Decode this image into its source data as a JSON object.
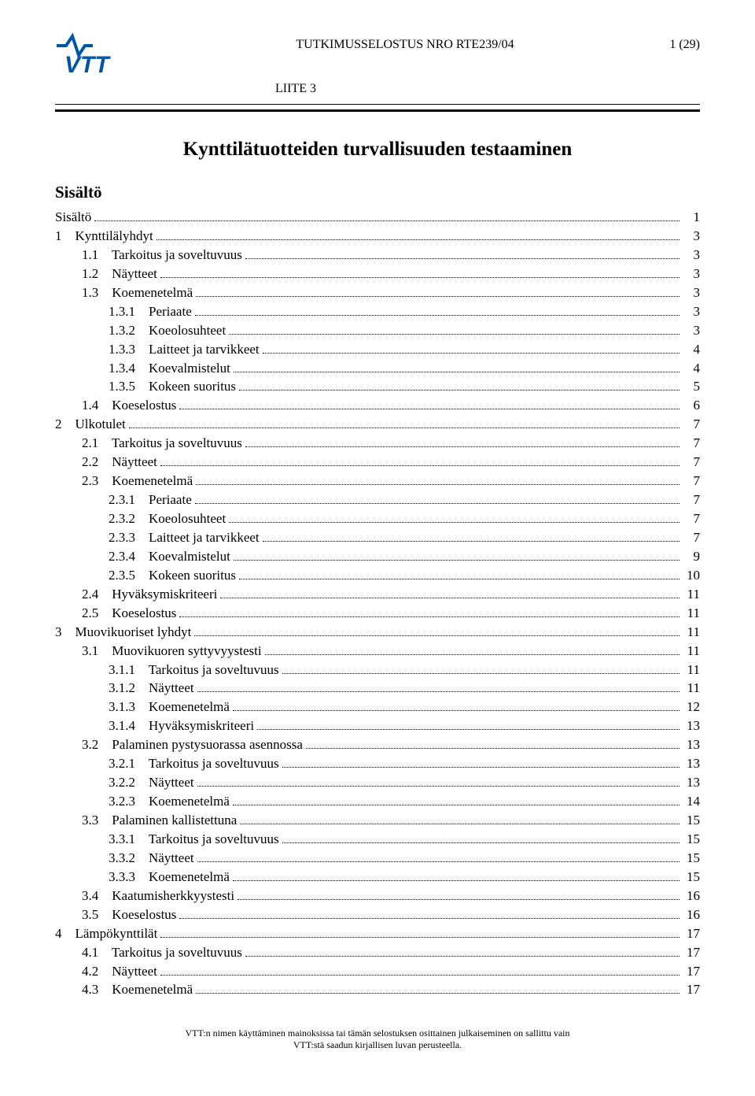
{
  "header": {
    "report_line": "TUTKIMUSSELOSTUS NRO RTE239/04",
    "page_indicator": "1 (29)",
    "appendix": "LIITE 3",
    "logo_text": "VTT"
  },
  "title": "Kynttilätuotteiden turvallisuuden testaaminen",
  "section_heading": "Sisältö",
  "toc": [
    {
      "indent": 0,
      "label": "Sisältö",
      "page": "1"
    },
    {
      "indent": 0,
      "label": "1    Kynttilälyhdyt",
      "page": "3"
    },
    {
      "indent": 1,
      "label": "1.1    Tarkoitus ja soveltuvuus",
      "page": "3"
    },
    {
      "indent": 1,
      "label": "1.2    Näytteet",
      "page": "3"
    },
    {
      "indent": 1,
      "label": "1.3    Koemenetelmä",
      "page": "3"
    },
    {
      "indent": 2,
      "label": "1.3.1    Periaate",
      "page": "3"
    },
    {
      "indent": 2,
      "label": "1.3.2    Koeolosuhteet",
      "page": "3"
    },
    {
      "indent": 2,
      "label": "1.3.3    Laitteet ja tarvikkeet",
      "page": "4"
    },
    {
      "indent": 2,
      "label": "1.3.4    Koevalmistelut",
      "page": "4"
    },
    {
      "indent": 2,
      "label": "1.3.5    Kokeen suoritus",
      "page": "5"
    },
    {
      "indent": 1,
      "label": "1.4    Koeselostus",
      "page": "6"
    },
    {
      "indent": 0,
      "label": "2    Ulkotulet",
      "page": "7"
    },
    {
      "indent": 1,
      "label": "2.1    Tarkoitus ja soveltuvuus",
      "page": "7"
    },
    {
      "indent": 1,
      "label": "2.2    Näytteet",
      "page": "7"
    },
    {
      "indent": 1,
      "label": "2.3    Koemenetelmä",
      "page": "7"
    },
    {
      "indent": 2,
      "label": "2.3.1    Periaate",
      "page": "7"
    },
    {
      "indent": 2,
      "label": "2.3.2    Koeolosuhteet",
      "page": "7"
    },
    {
      "indent": 2,
      "label": "2.3.3    Laitteet ja tarvikkeet",
      "page": "7"
    },
    {
      "indent": 2,
      "label": "2.3.4    Koevalmistelut",
      "page": "9"
    },
    {
      "indent": 2,
      "label": "2.3.5    Kokeen suoritus",
      "page": "10"
    },
    {
      "indent": 1,
      "label": "2.4    Hyväksymiskriteeri",
      "page": "11"
    },
    {
      "indent": 1,
      "label": "2.5    Koeselostus",
      "page": "11"
    },
    {
      "indent": 0,
      "label": "3    Muovikuoriset lyhdyt",
      "page": "11"
    },
    {
      "indent": 1,
      "label": "3.1    Muovikuoren syttyvyystesti",
      "page": "11"
    },
    {
      "indent": 2,
      "label": "3.1.1    Tarkoitus ja soveltuvuus",
      "page": "11"
    },
    {
      "indent": 2,
      "label": "3.1.2    Näytteet",
      "page": "11"
    },
    {
      "indent": 2,
      "label": "3.1.3    Koemenetelmä",
      "page": "12"
    },
    {
      "indent": 2,
      "label": "3.1.4    Hyväksymiskriteeri",
      "page": "13"
    },
    {
      "indent": 1,
      "label": "3.2    Palaminen pystysuorassa asennossa",
      "page": "13"
    },
    {
      "indent": 2,
      "label": "3.2.1    Tarkoitus ja soveltuvuus",
      "page": "13"
    },
    {
      "indent": 2,
      "label": "3.2.2    Näytteet",
      "page": "13"
    },
    {
      "indent": 2,
      "label": "3.2.3    Koemenetelmä",
      "page": "14"
    },
    {
      "indent": 1,
      "label": "3.3    Palaminen kallistettuna",
      "page": "15"
    },
    {
      "indent": 2,
      "label": "3.3.1    Tarkoitus ja soveltuvuus",
      "page": "15"
    },
    {
      "indent": 2,
      "label": "3.3.2    Näytteet",
      "page": "15"
    },
    {
      "indent": 2,
      "label": "3.3.3    Koemenetelmä",
      "page": "15"
    },
    {
      "indent": 1,
      "label": "3.4    Kaatumisherkkyystesti",
      "page": "16"
    },
    {
      "indent": 1,
      "label": "3.5    Koeselostus",
      "page": "16"
    },
    {
      "indent": 0,
      "label": "4    Lämpökynttilät",
      "page": "17"
    },
    {
      "indent": 1,
      "label": "4.1    Tarkoitus ja soveltuvuus",
      "page": "17"
    },
    {
      "indent": 1,
      "label": "4.2    Näytteet",
      "page": "17"
    },
    {
      "indent": 1,
      "label": "4.3    Koemenetelmä",
      "page": "17"
    }
  ],
  "footer": {
    "line1": "VTT:n nimen käyttäminen mainoksissa tai tämän selostuksen osittainen julkaiseminen on sallittu vain",
    "line2": "VTT:stä saadun kirjallisen luvan perusteella."
  },
  "colors": {
    "logo": "#0056a3"
  }
}
